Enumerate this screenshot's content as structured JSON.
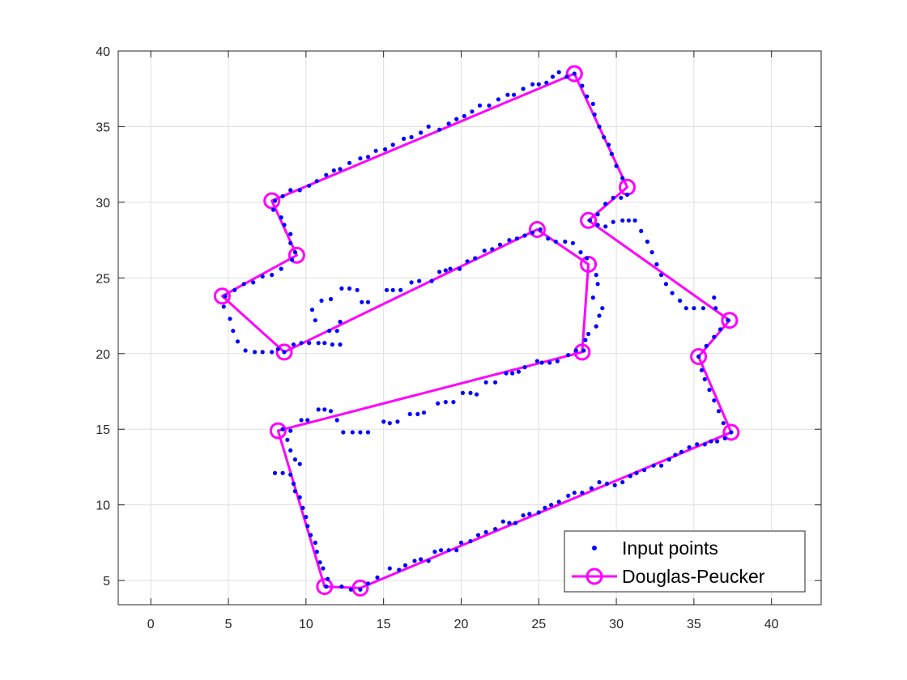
{
  "chart_data": {
    "type": "line",
    "title": "",
    "xlabel": "",
    "ylabel": "",
    "xlim": [
      -2.1,
      43.2
    ],
    "ylim": [
      3.4,
      40
    ],
    "xticks": [
      0,
      5,
      10,
      15,
      20,
      25,
      30,
      35,
      40
    ],
    "yticks": [
      5,
      10,
      15,
      20,
      25,
      30,
      35,
      40
    ],
    "grid": true,
    "legend_position": "bottom-right",
    "colors": {
      "input_points": "#0000ff",
      "douglas_peucker": "#ff00ff"
    },
    "series": [
      {
        "name": "Input points",
        "style": "dots",
        "points": [
          [
            27.3,
            38.5
          ],
          [
            26.8,
            38.3
          ],
          [
            26.3,
            38.6
          ],
          [
            25.9,
            38.3
          ],
          [
            25.5,
            37.9
          ],
          [
            25.0,
            37.8
          ],
          [
            24.6,
            37.8
          ],
          [
            24.0,
            37.5
          ],
          [
            23.4,
            37.1
          ],
          [
            23.0,
            37.1
          ],
          [
            22.4,
            36.8
          ],
          [
            21.8,
            36.4
          ],
          [
            21.2,
            36.4
          ],
          [
            20.7,
            36.0
          ],
          [
            20.2,
            35.7
          ],
          [
            19.7,
            35.5
          ],
          [
            19.2,
            35.2
          ],
          [
            18.6,
            34.8
          ],
          [
            17.9,
            35.0
          ],
          [
            17.4,
            34.6
          ],
          [
            16.8,
            34.3
          ],
          [
            16.3,
            34.2
          ],
          [
            15.6,
            33.8
          ],
          [
            15.1,
            33.5
          ],
          [
            14.5,
            33.4
          ],
          [
            14.0,
            33.0
          ],
          [
            13.5,
            32.9
          ],
          [
            12.8,
            32.6
          ],
          [
            12.2,
            32.2
          ],
          [
            11.8,
            32.1
          ],
          [
            11.3,
            31.8
          ],
          [
            10.7,
            31.4
          ],
          [
            10.2,
            31.1
          ],
          [
            9.6,
            30.8
          ],
          [
            9.0,
            30.8
          ],
          [
            8.5,
            30.4
          ],
          [
            8.0,
            30.1
          ],
          [
            7.9,
            29.5
          ],
          [
            8.4,
            29.0
          ],
          [
            8.6,
            28.5
          ],
          [
            9.0,
            27.9
          ],
          [
            9.0,
            27.3
          ],
          [
            9.3,
            26.7
          ],
          [
            9.1,
            26.2
          ],
          [
            8.4,
            25.6
          ],
          [
            7.8,
            25.2
          ],
          [
            7.2,
            25.1
          ],
          [
            6.6,
            24.7
          ],
          [
            6.0,
            24.6
          ],
          [
            5.4,
            24.2
          ],
          [
            4.8,
            23.8
          ],
          [
            4.7,
            23.1
          ],
          [
            5.1,
            22.3
          ],
          [
            5.3,
            21.5
          ],
          [
            5.6,
            20.8
          ],
          [
            6.1,
            20.2
          ],
          [
            6.7,
            20.1
          ],
          [
            7.2,
            20.1
          ],
          [
            7.8,
            20.1
          ],
          [
            8.2,
            20.3
          ],
          [
            8.6,
            20.1
          ],
          [
            9.2,
            20.6
          ],
          [
            9.7,
            20.7
          ],
          [
            10.2,
            20.7
          ],
          [
            10.8,
            20.7
          ],
          [
            11.2,
            20.7
          ],
          [
            11.7,
            20.6
          ],
          [
            12.2,
            20.6
          ],
          [
            11.5,
            21.5
          ],
          [
            12.0,
            21.5
          ],
          [
            12.2,
            22.1
          ],
          [
            10.6,
            22.2
          ],
          [
            10.4,
            22.9
          ],
          [
            11.0,
            23.5
          ],
          [
            11.6,
            23.6
          ],
          [
            12.3,
            24.3
          ],
          [
            12.8,
            24.3
          ],
          [
            13.3,
            24.2
          ],
          [
            13.6,
            23.4
          ],
          [
            14.0,
            23.4
          ],
          [
            15.2,
            24.2
          ],
          [
            15.6,
            24.2
          ],
          [
            16.1,
            24.2
          ],
          [
            16.8,
            24.7
          ],
          [
            17.3,
            24.8
          ],
          [
            18.1,
            24.8
          ],
          [
            18.6,
            25.4
          ],
          [
            19.0,
            25.5
          ],
          [
            19.3,
            25.6
          ],
          [
            19.9,
            25.6
          ],
          [
            20.4,
            26.1
          ],
          [
            20.9,
            26.3
          ],
          [
            21.5,
            26.8
          ],
          [
            22.0,
            26.9
          ],
          [
            22.5,
            27.2
          ],
          [
            23.1,
            27.5
          ],
          [
            23.6,
            27.6
          ],
          [
            24.1,
            27.8
          ],
          [
            24.6,
            28.0
          ],
          [
            25.1,
            28.2
          ],
          [
            25.6,
            27.6
          ],
          [
            26.1,
            27.4
          ],
          [
            26.7,
            27.4
          ],
          [
            27.2,
            27.3
          ],
          [
            27.7,
            26.7
          ],
          [
            28.1,
            26.3
          ],
          [
            28.7,
            25.2
          ],
          [
            28.8,
            24.6
          ],
          [
            28.5,
            23.7
          ],
          [
            29.1,
            23.0
          ],
          [
            28.9,
            22.5
          ],
          [
            28.7,
            21.8
          ],
          [
            28.2,
            21.3
          ],
          [
            28.0,
            20.9
          ],
          [
            27.9,
            20.2
          ],
          [
            27.4,
            20.2
          ],
          [
            26.9,
            19.9
          ],
          [
            26.2,
            19.5
          ],
          [
            25.7,
            19.4
          ],
          [
            25.2,
            19.4
          ],
          [
            24.9,
            19.5
          ],
          [
            24.1,
            19.1
          ],
          [
            23.7,
            18.8
          ],
          [
            23.3,
            18.7
          ],
          [
            22.9,
            18.7
          ],
          [
            22.2,
            18.1
          ],
          [
            21.6,
            18.1
          ],
          [
            21.0,
            17.3
          ],
          [
            20.6,
            17.4
          ],
          [
            20.1,
            17.4
          ],
          [
            19.5,
            16.8
          ],
          [
            19.0,
            16.8
          ],
          [
            18.5,
            16.7
          ],
          [
            17.6,
            16.1
          ],
          [
            17.2,
            16.0
          ],
          [
            16.7,
            16.0
          ],
          [
            15.9,
            15.5
          ],
          [
            15.4,
            15.4
          ],
          [
            15.0,
            15.5
          ],
          [
            14.0,
            14.8
          ],
          [
            13.5,
            14.8
          ],
          [
            13.0,
            14.8
          ],
          [
            12.4,
            14.8
          ],
          [
            12.0,
            15.6
          ],
          [
            11.6,
            16.2
          ],
          [
            11.2,
            16.3
          ],
          [
            10.8,
            16.3
          ],
          [
            10.1,
            15.6
          ],
          [
            9.7,
            15.6
          ],
          [
            9.0,
            14.9
          ],
          [
            8.5,
            15.0
          ],
          [
            8.8,
            14.3
          ],
          [
            9.0,
            13.6
          ],
          [
            9.3,
            13.0
          ],
          [
            9.6,
            12.7
          ],
          [
            9.0,
            12.0
          ],
          [
            8.5,
            12.1
          ],
          [
            8.0,
            12.1
          ],
          [
            9.2,
            11.4
          ],
          [
            9.3,
            10.9
          ],
          [
            9.6,
            10.5
          ],
          [
            9.8,
            9.8
          ],
          [
            10.0,
            9.2
          ],
          [
            10.1,
            8.6
          ],
          [
            10.3,
            8.0
          ],
          [
            10.6,
            7.5
          ],
          [
            10.7,
            6.9
          ],
          [
            10.9,
            6.2
          ],
          [
            11.1,
            5.8
          ],
          [
            11.4,
            5.1
          ],
          [
            11.3,
            4.6
          ],
          [
            12.3,
            4.6
          ],
          [
            12.9,
            4.4
          ],
          [
            13.5,
            4.4
          ],
          [
            14.0,
            4.8
          ],
          [
            14.6,
            5.2
          ],
          [
            15.4,
            5.8
          ],
          [
            16.0,
            5.7
          ],
          [
            16.4,
            6.0
          ],
          [
            17.0,
            6.3
          ],
          [
            17.4,
            6.4
          ],
          [
            17.9,
            6.3
          ],
          [
            18.3,
            6.9
          ],
          [
            18.7,
            7.0
          ],
          [
            19.2,
            7.0
          ],
          [
            19.7,
            7.0
          ],
          [
            20.0,
            7.5
          ],
          [
            20.6,
            7.6
          ],
          [
            21.1,
            8.0
          ],
          [
            21.6,
            8.2
          ],
          [
            22.2,
            8.4
          ],
          [
            22.7,
            8.9
          ],
          [
            23.1,
            8.8
          ],
          [
            23.5,
            8.8
          ],
          [
            24.0,
            9.3
          ],
          [
            24.4,
            9.4
          ],
          [
            25.0,
            9.5
          ],
          [
            25.4,
            9.8
          ],
          [
            25.8,
            10.0
          ],
          [
            26.3,
            10.2
          ],
          [
            26.9,
            10.6
          ],
          [
            27.3,
            10.8
          ],
          [
            27.8,
            10.8
          ],
          [
            28.4,
            11.1
          ],
          [
            28.9,
            11.5
          ],
          [
            29.4,
            11.4
          ],
          [
            29.9,
            11.3
          ],
          [
            30.4,
            11.5
          ],
          [
            30.9,
            11.9
          ],
          [
            31.3,
            12.1
          ],
          [
            31.8,
            12.3
          ],
          [
            32.4,
            12.6
          ],
          [
            32.9,
            12.6
          ],
          [
            33.4,
            13.0
          ],
          [
            33.8,
            13.3
          ],
          [
            34.2,
            13.5
          ],
          [
            34.7,
            13.8
          ],
          [
            35.2,
            14.0
          ],
          [
            35.7,
            14.0
          ],
          [
            36.1,
            14.2
          ],
          [
            36.5,
            14.2
          ],
          [
            37.0,
            14.4
          ],
          [
            37.4,
            14.8
          ],
          [
            36.9,
            15.4
          ],
          [
            36.6,
            16.2
          ],
          [
            36.3,
            16.9
          ],
          [
            36.0,
            17.6
          ],
          [
            35.7,
            18.3
          ],
          [
            35.5,
            18.9
          ],
          [
            35.3,
            19.8
          ],
          [
            35.8,
            20.5
          ],
          [
            36.3,
            21.1
          ],
          [
            36.7,
            21.6
          ],
          [
            37.2,
            22.2
          ],
          [
            36.4,
            23.0
          ],
          [
            36.3,
            23.7
          ],
          [
            35.6,
            23.0
          ],
          [
            35.0,
            23.0
          ],
          [
            34.5,
            23.0
          ],
          [
            34.1,
            23.5
          ],
          [
            33.6,
            24.0
          ],
          [
            33.2,
            24.6
          ],
          [
            32.9,
            25.2
          ],
          [
            32.6,
            25.9
          ],
          [
            32.3,
            26.7
          ],
          [
            32.0,
            27.4
          ],
          [
            31.6,
            28.1
          ],
          [
            31.2,
            28.8
          ],
          [
            30.8,
            28.8
          ],
          [
            30.4,
            28.8
          ],
          [
            29.8,
            28.7
          ],
          [
            29.3,
            28.4
          ],
          [
            28.8,
            28.5
          ],
          [
            28.3,
            28.8
          ],
          [
            28.8,
            29.2
          ],
          [
            29.3,
            29.9
          ],
          [
            29.8,
            30.3
          ],
          [
            30.3,
            30.3
          ],
          [
            30.7,
            30.5
          ],
          [
            30.4,
            31.6
          ],
          [
            30.0,
            32.4
          ],
          [
            29.7,
            33.2
          ],
          [
            29.5,
            33.8
          ],
          [
            29.2,
            34.3
          ],
          [
            28.9,
            35.0
          ],
          [
            28.6,
            35.8
          ],
          [
            28.5,
            36.5
          ],
          [
            28.1,
            37.0
          ],
          [
            27.8,
            37.7
          ]
        ]
      },
      {
        "name": "Douglas-Peucker",
        "style": "line-with-circles",
        "points": [
          [
            27.3,
            38.5
          ],
          [
            7.8,
            30.1
          ],
          [
            9.4,
            26.5
          ],
          [
            4.6,
            23.8
          ],
          [
            8.6,
            20.1
          ],
          [
            24.9,
            28.2
          ],
          [
            28.2,
            25.9
          ],
          [
            27.8,
            20.1
          ],
          [
            8.2,
            14.9
          ],
          [
            11.2,
            4.6
          ],
          [
            13.5,
            4.5
          ],
          [
            37.4,
            14.8
          ],
          [
            35.3,
            19.8
          ],
          [
            37.3,
            22.2
          ],
          [
            28.2,
            28.8
          ],
          [
            30.7,
            31.0
          ],
          [
            27.3,
            38.5
          ]
        ]
      }
    ]
  }
}
